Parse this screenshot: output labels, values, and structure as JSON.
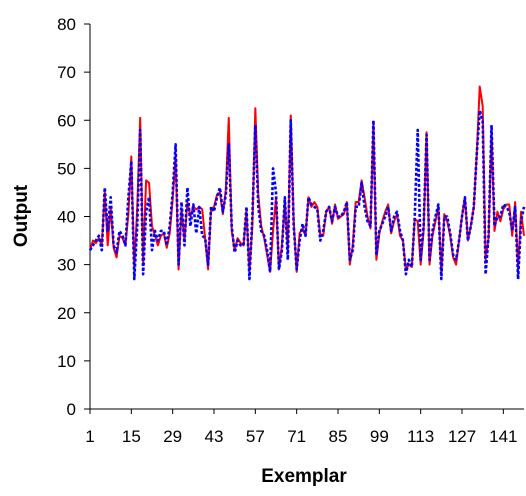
{
  "chart_data": {
    "type": "line",
    "title": "",
    "xlabel": "Exemplar",
    "ylabel": "Output",
    "xlim": [
      1,
      148
    ],
    "ylim": [
      0,
      80
    ],
    "yticks": [
      0,
      10,
      20,
      30,
      40,
      50,
      60,
      70,
      80
    ],
    "xticks": [
      1,
      15,
      29,
      43,
      57,
      71,
      85,
      99,
      113,
      127,
      141
    ],
    "grid": false,
    "legend": "none",
    "series": [
      {
        "color": "#ff0000",
        "dash": "solid",
        "values": [
          33,
          35,
          34.5,
          35.5,
          34,
          45,
          34,
          42,
          33.5,
          31.5,
          36,
          35.5,
          34,
          40.5,
          52.5,
          29,
          42,
          60.5,
          30.5,
          47.5,
          47,
          38,
          36,
          34,
          36,
          36.5,
          33.5,
          36.5,
          43.5,
          52.5,
          29,
          41.5,
          35,
          43,
          40,
          42,
          41.5,
          42,
          41.5,
          35.5,
          29,
          41.5,
          42,
          44.5,
          45,
          40.5,
          45.5,
          60.5,
          37,
          33,
          35.5,
          34.5,
          34,
          41,
          28.5,
          38,
          62.5,
          44.5,
          38,
          35.5,
          32,
          28.5,
          37,
          44,
          29,
          34,
          43,
          33,
          61,
          39,
          28.5,
          36.5,
          37.5,
          36,
          44,
          42,
          43,
          42,
          36,
          36,
          41,
          42,
          38.5,
          42.5,
          39.5,
          40,
          40.5,
          43,
          30,
          34,
          43,
          43,
          47.5,
          44,
          40,
          37.5,
          59,
          31,
          36.5,
          39,
          41,
          42.5,
          36.5,
          39,
          40.5,
          36,
          35,
          29,
          30,
          29.5,
          39.5,
          39,
          30,
          37,
          57.5,
          30,
          36,
          39,
          42,
          28,
          40.5,
          39,
          36,
          31.5,
          30,
          35,
          40,
          44,
          35,
          38,
          42,
          53,
          67,
          63,
          31,
          35.5,
          58,
          37,
          41,
          39,
          41.5,
          42.5,
          42.5,
          36,
          43,
          29,
          41,
          36
        ]
      },
      {
        "color": "#0000ff",
        "dash": "dotted",
        "values": [
          33,
          34,
          35,
          36,
          33,
          46,
          37,
          44,
          34,
          32.5,
          37,
          36,
          34,
          44,
          51.5,
          27,
          38,
          58,
          28,
          41,
          44,
          33,
          37,
          35,
          37,
          37,
          34,
          38,
          45,
          55,
          30,
          43,
          34,
          46,
          38,
          42.5,
          36.5,
          42,
          36,
          35.5,
          30,
          42,
          41,
          44,
          46,
          41,
          44.5,
          55,
          38,
          32.5,
          35,
          34,
          34,
          42,
          27,
          40,
          59,
          42,
          37,
          36,
          33,
          28.5,
          50,
          45,
          29,
          33,
          44,
          31,
          60,
          38,
          29,
          35,
          38.5,
          36,
          44,
          42.5,
          42,
          41.5,
          35,
          37,
          41,
          42,
          39,
          42,
          40,
          40,
          41,
          43,
          31,
          33,
          42,
          42,
          47,
          42,
          39,
          38,
          60,
          32,
          37,
          38.5,
          40,
          42,
          37,
          40,
          41,
          37,
          35,
          28,
          31,
          29.5,
          40,
          58,
          31,
          38,
          57,
          31,
          37,
          40,
          42.5,
          27,
          40,
          40,
          36.5,
          32,
          31,
          35,
          40,
          44,
          35,
          38,
          42,
          53,
          62,
          60,
          28,
          36,
          59,
          38,
          40,
          40,
          42.5,
          42,
          41,
          37,
          42,
          27,
          39,
          42
        ]
      }
    ]
  }
}
